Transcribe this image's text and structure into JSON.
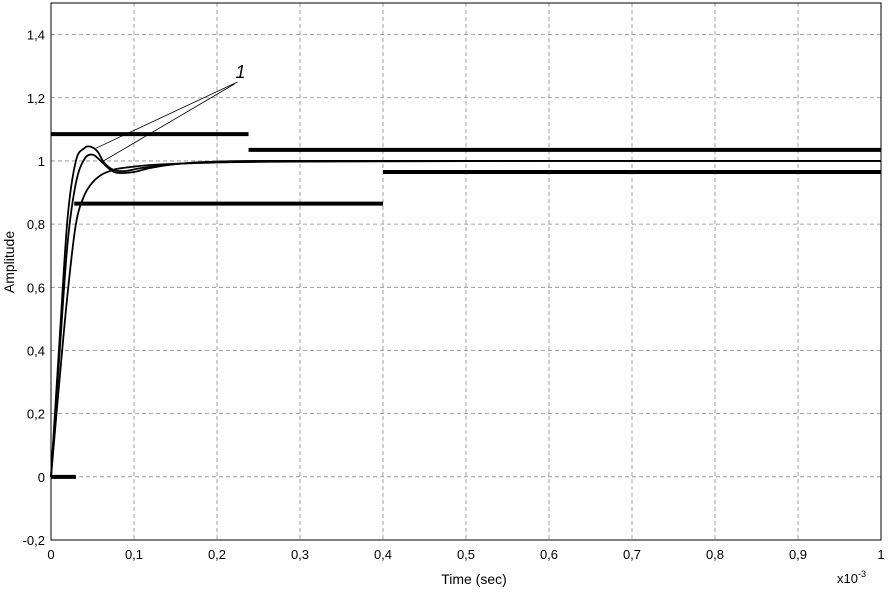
{
  "chart_data": {
    "type": "line",
    "xlabel": "Time (sec)",
    "ylabel": "Amplitude",
    "x_multiplier_base": "x10",
    "x_multiplier_exp": "-3",
    "xlim": [
      0,
      1
    ],
    "ylim": [
      -0.2,
      1.5
    ],
    "grid": true,
    "x_ticks": [
      "0",
      "0,1",
      "0,2",
      "0,3",
      "0,4",
      "0,5",
      "0,6",
      "0,7",
      "0,8",
      "0,9",
      "1"
    ],
    "x_tick_values": [
      0,
      0.1,
      0.2,
      0.3,
      0.4,
      0.5,
      0.6,
      0.7,
      0.8,
      0.9,
      1
    ],
    "y_ticks": [
      "-0,2",
      "0",
      "0,2",
      "0,4",
      "0,6",
      "0,8",
      "1",
      "1,2",
      "1,4"
    ],
    "y_tick_values": [
      -0.2,
      0,
      0.2,
      0.4,
      0.6,
      0.8,
      1.0,
      1.2,
      1.4
    ],
    "series": [
      {
        "x": [
          0,
          0.01,
          0.02,
          0.03,
          0.04,
          0.048,
          0.056,
          0.064,
          0.075,
          0.09,
          0.11,
          0.15,
          0.2,
          0.3,
          0.5,
          1.0
        ],
        "y": [
          0,
          0.42,
          0.82,
          1.0,
          1.04,
          1.045,
          1.03,
          0.995,
          0.972,
          0.968,
          0.978,
          0.99,
          0.998,
          1.0,
          1.0,
          1.0
        ]
      },
      {
        "x": [
          0,
          0.01,
          0.02,
          0.03,
          0.04,
          0.05,
          0.06,
          0.07,
          0.08,
          0.1,
          0.12,
          0.15,
          0.2,
          0.3,
          0.5,
          1.0
        ],
        "y": [
          0,
          0.38,
          0.74,
          0.93,
          1.005,
          1.02,
          1.0,
          0.975,
          0.962,
          0.965,
          0.978,
          0.99,
          0.998,
          1.0,
          1.0,
          1.0
        ]
      },
      {
        "x": [
          0,
          0.01,
          0.02,
          0.03,
          0.04,
          0.05,
          0.06,
          0.07,
          0.08,
          0.1,
          0.12,
          0.15,
          0.2,
          0.25,
          0.3,
          0.4,
          0.6,
          1.0
        ],
        "y": [
          0,
          0.3,
          0.58,
          0.8,
          0.89,
          0.932,
          0.955,
          0.967,
          0.975,
          0.982,
          0.987,
          0.991,
          0.995,
          0.997,
          0.998,
          0.999,
          1.0,
          1.0
        ]
      }
    ],
    "bounds": [
      {
        "x": [
          0,
          0.238
        ],
        "y": 1.085
      },
      {
        "x": [
          0.238,
          1.0
        ],
        "y": 1.035
      },
      {
        "x": [
          0.028,
          0.4
        ],
        "y": 0.865
      },
      {
        "x": [
          0.4,
          1.0
        ],
        "y": 0.965
      },
      {
        "x": [
          0,
          0.03
        ],
        "y": 0.0
      }
    ],
    "annotation": {
      "text": "1",
      "label_pos": [
        0.215,
        1.25
      ],
      "target": [
        0.054,
        1.04
      ]
    },
    "colors": {
      "line": "#000000",
      "grid": "#8a8a8a"
    }
  }
}
